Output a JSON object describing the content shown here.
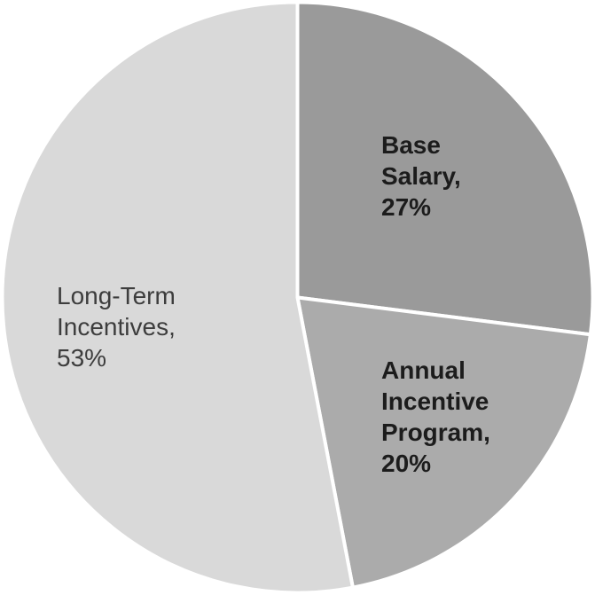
{
  "chart_data": {
    "type": "pie",
    "title": "",
    "legend": "none",
    "labels_inside": true,
    "start_angle_deg": 90,
    "direction": "clockwise",
    "background": "#ffffff",
    "slice_border_color": "#ffffff",
    "slices": [
      {
        "label": "Base Salary",
        "value": 27,
        "display_text": "Base Salary, 27%",
        "label_lines": [
          "Base",
          "Salary,",
          "27%"
        ],
        "color": "#9a9a9a",
        "label_color": "#1c1c1c",
        "label_bold": true
      },
      {
        "label": "Annual Incentive Program",
        "value": 20,
        "display_text": "Annual Incentive Program, 20%",
        "label_lines": [
          "Annual",
          "Incentive",
          "Program,",
          "20%"
        ],
        "color": "#ababab",
        "label_color": "#1c1c1c",
        "label_bold": true
      },
      {
        "label": "Long-Term Incentives",
        "value": 53,
        "display_text": "Long-Term Incentives, 53%",
        "label_lines": [
          "Long-Term",
          "Incentives,",
          "53%"
        ],
        "color": "#d9d9d9",
        "label_color": "#3d3d3d",
        "label_bold": false
      }
    ]
  }
}
